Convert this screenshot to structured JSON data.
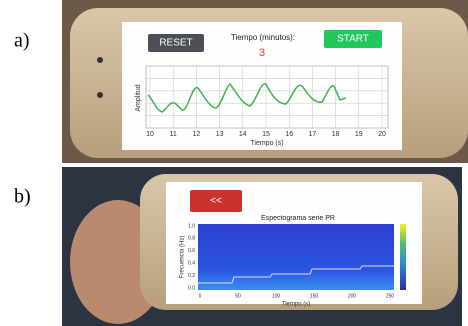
{
  "panels": [
    {
      "label": "a)",
      "screen": {
        "reset_button": "RESET",
        "start_button": "START",
        "timer_label": "Tiempo (minutos):",
        "timer_value": "3",
        "plot": {
          "y_label": "Amplitud",
          "x_label": "Tiempo (s)",
          "x_ticks": [
            "10",
            "11",
            "12",
            "13",
            "14",
            "15",
            "16",
            "17",
            "18",
            "19",
            "20"
          ]
        }
      }
    },
    {
      "label": "b)",
      "screen": {
        "back_button": "<<",
        "plot": {
          "title": "Espectograma serie PR",
          "y_label": "Frecuencia (Hz)",
          "x_label": "Tiempo (s)",
          "x_ticks": [
            "0",
            "50",
            "100",
            "150",
            "200",
            "250"
          ],
          "y_ticks": [
            "0.0",
            "0.2",
            "0.4",
            "0.6",
            "0.8",
            "1.0"
          ]
        }
      }
    }
  ]
}
